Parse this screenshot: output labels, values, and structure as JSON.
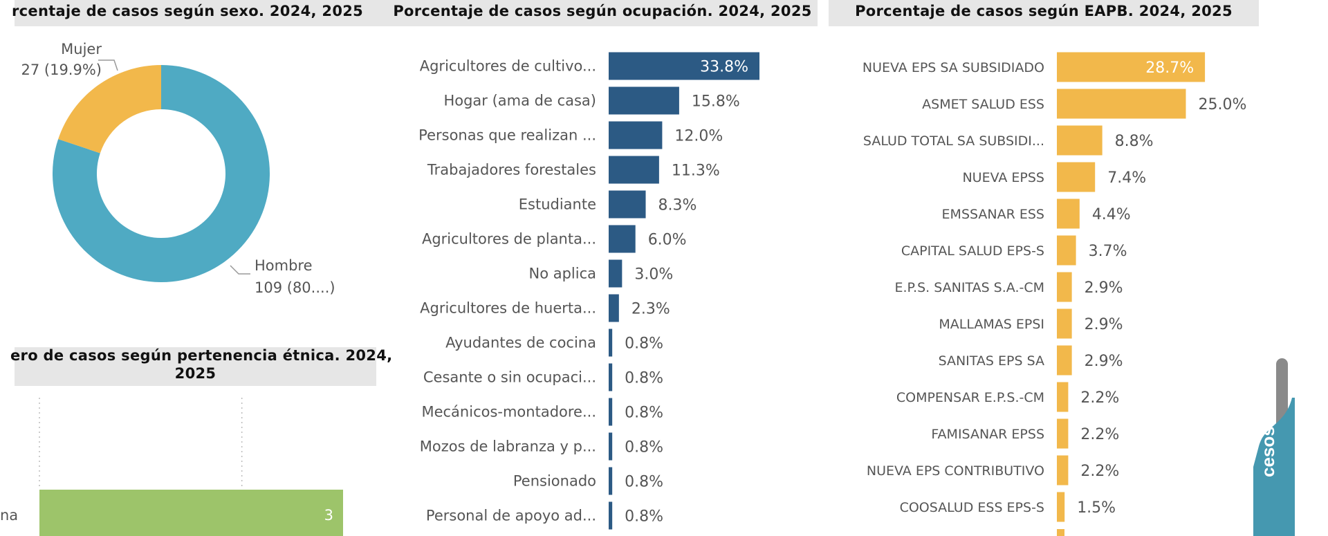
{
  "colors": {
    "male": "#4faac3",
    "female": "#f2b84b",
    "occupation": "#2c5a84",
    "eapb": "#f2b84b",
    "ethnic": "#9dc46a",
    "title_bg": "#e6e6e6",
    "side_tab": "#4598b0",
    "scrollbar": "#8a8a8a"
  },
  "side_tab": {
    "label": "cesos"
  },
  "chart_data": [
    {
      "type": "pie",
      "variant": "donut",
      "title": "rcentaje de casos según sexo. 2024, 2025",
      "slices": [
        {
          "name": "Hombre",
          "value": 109,
          "percent": 80.1,
          "label_line1": "Hombre",
          "label_line2": "109 (80....)"
        },
        {
          "name": "Mujer",
          "value": 27,
          "percent": 19.9,
          "label_line1": "Mujer",
          "label_line2": "27 (19.9%)"
        }
      ]
    },
    {
      "type": "bar",
      "orientation": "horizontal",
      "title_line1": "ero de casos según pertenencia étnica. 2024,",
      "title_line2": "2025",
      "categories": [
        "na"
      ],
      "values": [
        3
      ],
      "value_labels": [
        "3"
      ],
      "xlim": [
        0,
        3
      ],
      "grid": true,
      "gridlines": [
        0,
        2
      ]
    },
    {
      "type": "bar",
      "orientation": "horizontal",
      "title": "Porcentaje de casos según ocupación. 2024, 2025",
      "categories": [
        "Agricultores de cultivo...",
        "Hogar (ama de casa)",
        "Personas que realizan ...",
        "Trabajadores forestales",
        "Estudiante",
        "Agricultores de planta...",
        "No aplica",
        "Agricultores de huerta...",
        "Ayudantes de cocina",
        "Cesante o sin ocupaci...",
        "Mecánicos-montadore...",
        "Mozos de labranza y p...",
        "Pensionado",
        "Personal de apoyo ad..."
      ],
      "values": [
        33.8,
        15.8,
        12.0,
        11.3,
        8.3,
        6.0,
        3.0,
        2.3,
        0.8,
        0.8,
        0.8,
        0.8,
        0.8,
        0.8
      ],
      "value_labels": [
        "33.8%",
        "15.8%",
        "12.0%",
        "11.3%",
        "8.3%",
        "6.0%",
        "3.0%",
        "2.3%",
        "0.8%",
        "0.8%",
        "0.8%",
        "0.8%",
        "0.8%",
        "0.8%"
      ],
      "unit": "%",
      "grid": false
    },
    {
      "type": "bar",
      "orientation": "horizontal",
      "title": "Porcentaje de casos según EAPB. 2024, 2025",
      "categories": [
        "NUEVA EPS SA SUBSIDIADO",
        "ASMET SALUD ESS",
        "SALUD TOTAL SA SUBSIDI...",
        "NUEVA EPSS",
        "EMSSANAR ESS",
        "CAPITAL SALUD EPS-S",
        "E.P.S. SANITAS S.A.-CM",
        "MALLAMAS EPSI",
        "SANITAS EPS SA",
        "COMPENSAR E.P.S.-CM",
        "FAMISANAR EPSS",
        "NUEVA EPS CONTRIBUTIVO",
        "COOSALUD ESS EPS-S"
      ],
      "values": [
        28.7,
        25.0,
        8.8,
        7.4,
        4.4,
        3.7,
        2.9,
        2.9,
        2.9,
        2.2,
        2.2,
        2.2,
        1.5
      ],
      "value_labels": [
        "28.7%",
        "25.0%",
        "8.8%",
        "7.4%",
        "4.4%",
        "3.7%",
        "2.9%",
        "2.9%",
        "2.9%",
        "2.2%",
        "2.2%",
        "2.2%",
        "1.5%"
      ],
      "unit": "%",
      "grid": false
    }
  ]
}
